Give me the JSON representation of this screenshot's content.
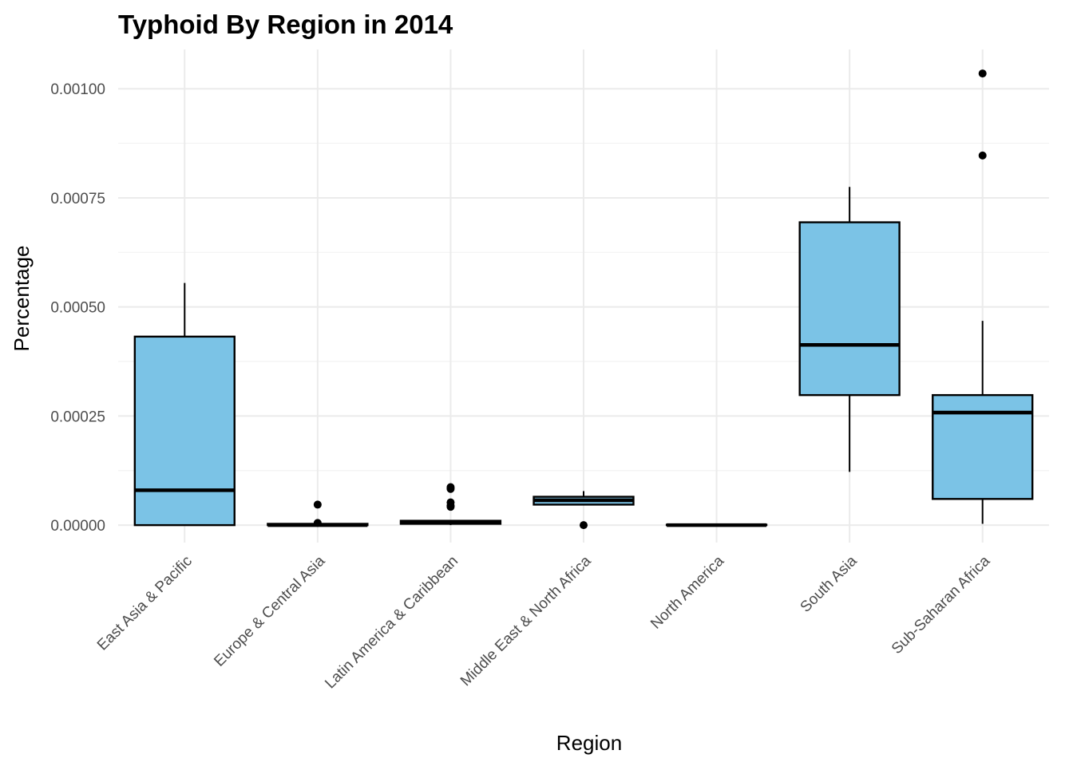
{
  "chart_data": {
    "type": "box",
    "title": "Typhoid By Region in 2014",
    "xlabel": "Region",
    "ylabel": "Percentage",
    "ylim": [
      -4e-05,
      0.00109
    ],
    "yticks": [
      0,
      0.00025,
      0.0005,
      0.00075,
      0.001
    ],
    "ytick_labels": [
      "0.00000",
      "0.00025",
      "0.00050",
      "0.00075",
      "0.00100"
    ],
    "grid": true,
    "legend": "none",
    "box_fill": "#7BC3E6",
    "box_stroke": "#000000",
    "grid_major_color": "#EBEBEB",
    "grid_minor_color": "#F2F2F2",
    "categories": [
      "East Asia & Pacific",
      "Europe & Central Asia",
      "Latin America & Caribbean",
      "Middle East & North Africa",
      "North America",
      "South Asia",
      "Sub-Saharan Africa"
    ],
    "boxes": [
      {
        "min": 0.0,
        "q1": 0.0,
        "median": 8e-05,
        "q3": 0.000432,
        "max": 0.000555,
        "outliers": []
      },
      {
        "min": 0.0,
        "q1": 0.0,
        "median": 0.0,
        "q3": 3e-06,
        "max": 3e-06,
        "outliers": [
          4.7e-05,
          5e-06
        ]
      },
      {
        "min": 0.0,
        "q1": 3e-06,
        "median": 7e-06,
        "q3": 1e-05,
        "max": 1e-05,
        "outliers": [
          8.7e-05,
          8.3e-05,
          5.2e-05,
          4.5e-05,
          4.2e-05
        ]
      },
      {
        "min": 4.5e-05,
        "q1": 4.7e-05,
        "median": 5.7e-05,
        "q3": 6.5e-05,
        "max": 7.8e-05,
        "outliers": [
          0.0
        ]
      },
      {
        "min": 0.0,
        "q1": 0.0,
        "median": 0.0,
        "q3": 1e-06,
        "max": 1e-06,
        "outliers": []
      },
      {
        "min": 0.000122,
        "q1": 0.000298,
        "median": 0.000413,
        "q3": 0.000694,
        "max": 0.000775,
        "outliers": []
      },
      {
        "min": 3e-06,
        "q1": 6e-05,
        "median": 0.000258,
        "q3": 0.000298,
        "max": 0.000468,
        "outliers": [
          0.001035,
          0.000847
        ]
      }
    ]
  }
}
